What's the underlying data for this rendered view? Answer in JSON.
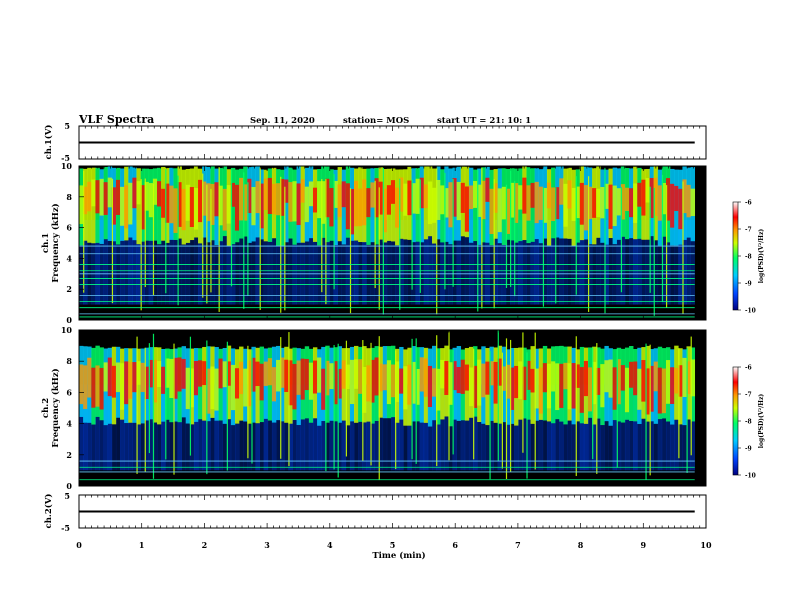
{
  "header": {
    "title": "VLF Spectra",
    "date": "Sep. 11, 2020",
    "station": "station= MOS",
    "start": "start  UT =   21: 10: 1"
  },
  "chart_data": {
    "type": "heatmap",
    "x_range": [
      0,
      10
    ],
    "x_ticks": [
      "0",
      "1",
      "2",
      "3",
      "4",
      "5",
      "6",
      "7",
      "8",
      "9",
      "10"
    ],
    "xlabel": "Time  (min)",
    "panels": [
      {
        "id": "ch1-waveform",
        "type": "line",
        "ylabel": "ch.1(V)",
        "ylim": [
          -5,
          5
        ],
        "y_ticks": [
          "5",
          "-5"
        ],
        "baseline_value": 0,
        "data_extent_min": 9.82
      },
      {
        "id": "ch1-spectrogram",
        "type": "heatmap",
        "ylabel_line1": "ch.1",
        "ylabel_line2": "Frequency (kHz)",
        "ylim": [
          0,
          10
        ],
        "y_ticks": [
          "0",
          "2",
          "4",
          "6",
          "8",
          "10"
        ],
        "intense_band_khz": [
          5,
          10
        ],
        "tone_lines_khz": [
          0.2,
          0.4,
          0.8,
          1.2,
          1.6,
          2.3,
          2.7,
          3.0,
          3.2,
          3.6,
          4.3,
          4.8
        ],
        "data_extent_min": 9.82
      },
      {
        "id": "ch2-spectrogram",
        "type": "heatmap",
        "ylabel_line1": "ch.2",
        "ylabel_line2": "Frequency (kHz)",
        "ylim": [
          0,
          10
        ],
        "y_ticks": [
          "0",
          "2",
          "4",
          "6",
          "8",
          "10"
        ],
        "intense_band_khz": [
          4,
          9
        ],
        "tone_lines_khz": [
          0.4,
          0.9,
          1.2,
          1.6
        ],
        "data_extent_min": 9.82
      },
      {
        "id": "ch2-waveform",
        "type": "line",
        "ylabel": "ch.2(V)",
        "ylim": [
          -5,
          5
        ],
        "y_ticks": [
          "5",
          "-5"
        ],
        "baseline_value": 0,
        "data_extent_min": 9.82
      }
    ],
    "colorbar": {
      "label": "log(PSD)(V²/Hz)",
      "ticks": [
        "-6",
        "-7",
        "-8",
        "-9",
        "-10"
      ],
      "range": [
        -10,
        -6
      ],
      "colors": [
        "#000080",
        "#0044ff",
        "#00ccff",
        "#00ff66",
        "#ccff00",
        "#ff9900",
        "#ff0000",
        "#ffffff"
      ]
    }
  }
}
